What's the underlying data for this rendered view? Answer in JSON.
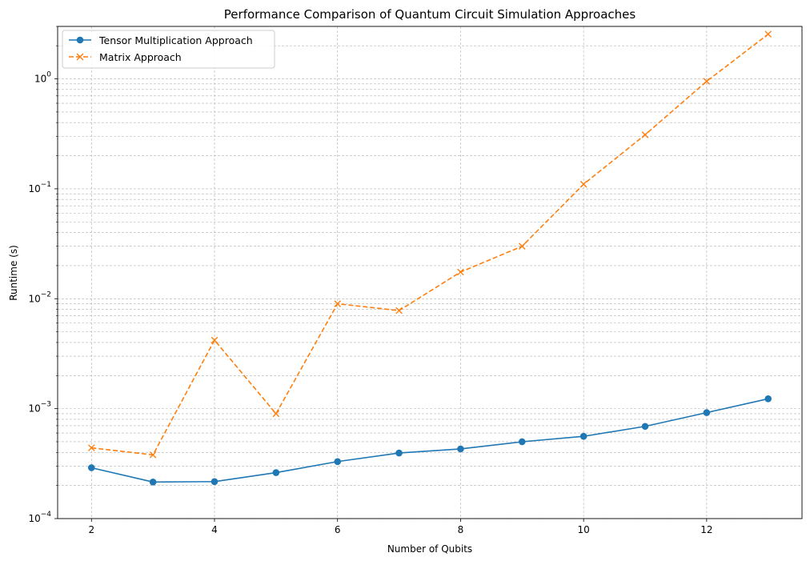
{
  "chart_data": {
    "type": "line",
    "title": "Performance Comparison of Quantum Circuit Simulation Approaches",
    "xlabel": "Number of Qubits",
    "ylabel": "Runtime (s)",
    "x": [
      2,
      3,
      4,
      5,
      6,
      7,
      8,
      9,
      10,
      11,
      12,
      13
    ],
    "xlim": [
      1.45,
      13.55
    ],
    "xticks": [
      "2",
      "4",
      "6",
      "8",
      "10",
      "12"
    ],
    "yscale": "log",
    "ylim": [
      0.0001,
      3.0
    ],
    "yticks": [
      {
        "base": "10",
        "exp": "−4"
      },
      {
        "base": "10",
        "exp": "−3"
      },
      {
        "base": "10",
        "exp": "−2"
      },
      {
        "base": "10",
        "exp": "−1"
      },
      {
        "base": "10",
        "exp": "0"
      }
    ],
    "grid": true,
    "legend_position": "top-left",
    "series": [
      {
        "name": "Tensor Multiplication Approach",
        "color": "#1f77b4",
        "marker": "circle",
        "linestyle": "solid",
        "values": [
          0.00029,
          0.000215,
          0.000217,
          0.000262,
          0.00033,
          0.000395,
          0.00043,
          0.0005,
          0.00056,
          0.00069,
          0.00092,
          0.00123
        ]
      },
      {
        "name": "Matrix Approach",
        "color": "#ff7f0e",
        "marker": "x",
        "linestyle": "dashed",
        "values": [
          0.00044,
          0.00038,
          0.0042,
          0.0009,
          0.009,
          0.0078,
          0.0175,
          0.03,
          0.11,
          0.31,
          0.95,
          2.55
        ]
      }
    ]
  }
}
